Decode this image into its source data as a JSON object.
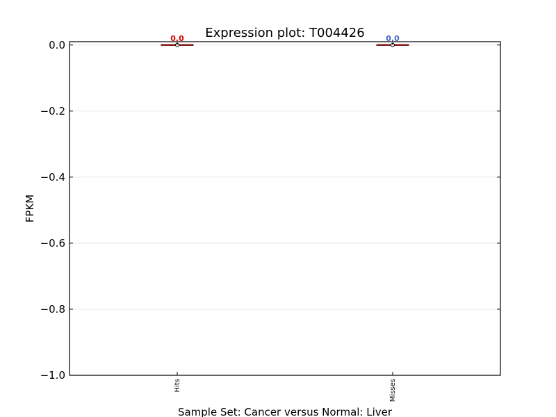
{
  "chart_data": {
    "type": "box",
    "title": "Expression plot: T004426",
    "xlabel": "Sample Set: Cancer versus Normal: Liver",
    "ylabel": "FPKM",
    "ylim": [
      -1.0,
      0.01
    ],
    "yticks": [
      0.0,
      -0.2,
      -0.4,
      -0.6,
      -0.8,
      -1.0
    ],
    "ytick_labels": [
      "0.0",
      "−0.2",
      "−0.4",
      "−0.6",
      "−0.8",
      "−1.0"
    ],
    "grid": true,
    "categories": [
      "Hits",
      "Misses"
    ],
    "series": [
      {
        "category": "Hits",
        "min": 0.0,
        "q1": 0.0,
        "median": 0.0,
        "q3": 0.0,
        "max": 0.0,
        "mean": 0.0,
        "label": "0.0",
        "label_color": "#dd0000"
      },
      {
        "category": "Misses",
        "min": 0.0,
        "q1": 0.0,
        "median": 0.0,
        "q3": 0.0,
        "max": 0.0,
        "mean": 0.0,
        "label": "0.0",
        "label_color": "#4466cc"
      }
    ]
  }
}
